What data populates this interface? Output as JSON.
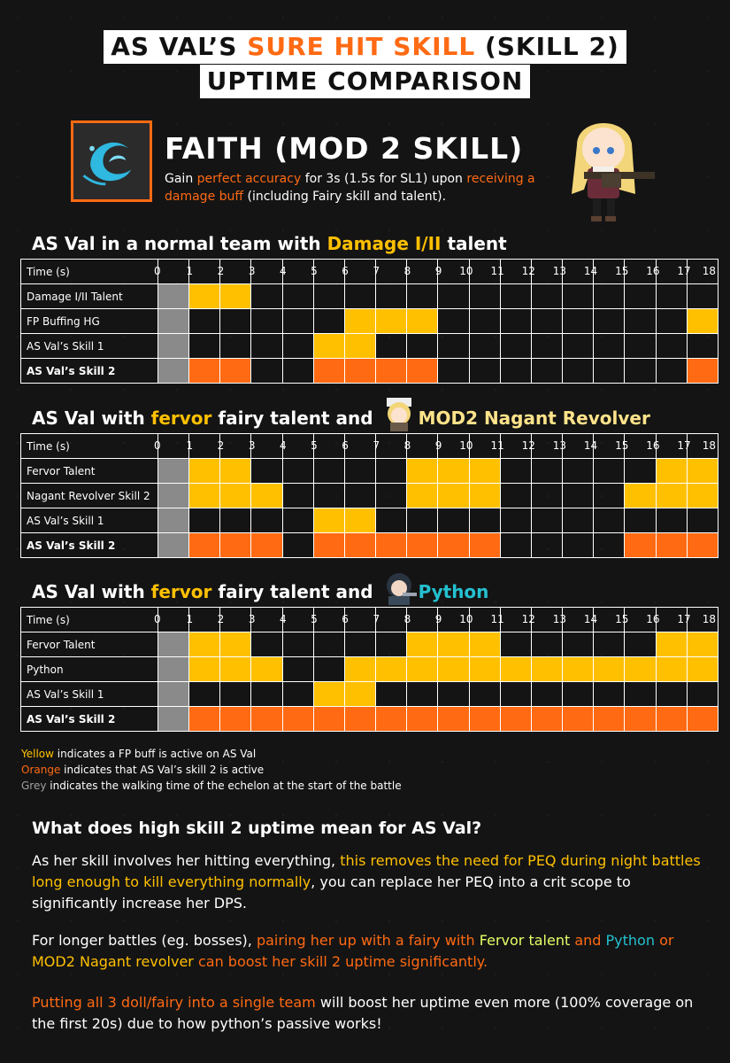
{
  "title": {
    "line1_pre": "AS VAL’S ",
    "line1_hl": "SURE HIT SKILL",
    "line1_post": " (SKILL 2)",
    "line2": "UPTIME COMPARISON"
  },
  "skill": {
    "icon": "wave-skill-icon",
    "name": "FAITH (MOD 2 SKILL)",
    "desc": [
      "Gain ",
      "perfect accuracy",
      " for 3s (1.5s for SL1) upon ",
      "receiving a damage buff",
      " (including Fairy skill and talent)."
    ]
  },
  "sections": [
    {
      "title_parts": [
        "AS Val in a normal team with ",
        "Damage I/II",
        " talent"
      ],
      "header_label": "Time (s)",
      "ticks": [
        "0",
        "1",
        "2",
        "3",
        "4",
        "5",
        "6",
        "7",
        "8",
        "9",
        "10",
        "11",
        "12",
        "13",
        "14",
        "15",
        "16",
        "17",
        "18"
      ],
      "rows": [
        {
          "label": "Damage I/II Talent",
          "bold": false,
          "cells": "gyy..............."
        },
        {
          "label": "FP Buffing HG",
          "bold": false,
          "cells": "g.....yyy........y"
        },
        {
          "label": "AS Val’s Skill 1",
          "bold": false,
          "cells": "g....yy..........."
        },
        {
          "label": "AS Val’s Skill 2",
          "bold": true,
          "cells": "goo..oooo........o"
        }
      ]
    },
    {
      "title_parts": [
        "AS Val with ",
        "fervor",
        " fairy talent and ",
        "MOD2 Nagant Revolver"
      ],
      "header_label": "Time (s)",
      "ticks": [
        "0",
        "1",
        "2",
        "3",
        "4",
        "5",
        "6",
        "7",
        "8",
        "9",
        "10",
        "11",
        "12",
        "13",
        "14",
        "15",
        "16",
        "17",
        "18"
      ],
      "rows": [
        {
          "label": "Fervor Talent",
          "bold": false,
          "cells": "gyy.....yyy.....yy"
        },
        {
          "label": "Nagant Revolver Skill 2",
          "bold": false,
          "cells": "gyyy....yyy....yyy"
        },
        {
          "label": "AS Val’s Skill 1",
          "bold": false,
          "cells": "g....yy..........."
        },
        {
          "label": "AS Val’s Skill 2",
          "bold": true,
          "cells": "gooo.oooooo....ooo"
        }
      ]
    },
    {
      "title_parts": [
        "AS Val with ",
        "fervor",
        " fairy talent and ",
        "Python"
      ],
      "header_label": "Time (s)",
      "ticks": [
        "0",
        "1",
        "2",
        "3",
        "4",
        "5",
        "6",
        "7",
        "8",
        "9",
        "10",
        "11",
        "12",
        "13",
        "14",
        "15",
        "16",
        "17",
        "18"
      ],
      "rows": [
        {
          "label": "Fervor Talent",
          "bold": false,
          "cells": "gyy.....yyy.....yy"
        },
        {
          "label": "Python",
          "bold": false,
          "cells": "gyyy..yyyyyyyyyyyy"
        },
        {
          "label": "AS Val’s Skill 1",
          "bold": false,
          "cells": "g....yy..........."
        },
        {
          "label": "AS Val’s Skill 2",
          "bold": true,
          "cells": "gooooooooooooooooo"
        }
      ]
    }
  ],
  "legend": [
    {
      "key": "Yellow",
      "text": " indicates a FP buff is active on AS Val",
      "color": "#ffc000"
    },
    {
      "key": "Orange",
      "text": " indicates that AS Val’s skill 2 is active",
      "color": "#ff6a13"
    },
    {
      "key": "Grey",
      "text": " indicates the walking time of the echelon at the start of the battle",
      "color": "#a0a0a0"
    }
  ],
  "faq": {
    "question": "What does high skill 2 uptime mean for AS Val?",
    "p1": [
      "As her skill involves her hitting everything, ",
      "this removes the need for PEQ during night battles long enough to kill everything normally",
      ", you can replace her PEQ into a crit scope to significantly increase her DPS."
    ],
    "p2": [
      "For longer battles (eg. bosses), ",
      "pairing her up with a fairy with ",
      "Fervor talent",
      " and ",
      "Python",
      " or ",
      "MOD2 Nagant revolver",
      " can boost her skill 2 uptime significantly."
    ],
    "p3": [
      "Putting all 3 doll/fairy into a single team",
      " will boost her uptime even more (100% coverage on the first 20s) due to how python’s passive works!"
    ]
  },
  "colors": {
    "yellow": "#ffc000",
    "orange": "#ff6a13",
    "grey": "#8a8a8a",
    "cyan": "#24c0d0"
  }
}
